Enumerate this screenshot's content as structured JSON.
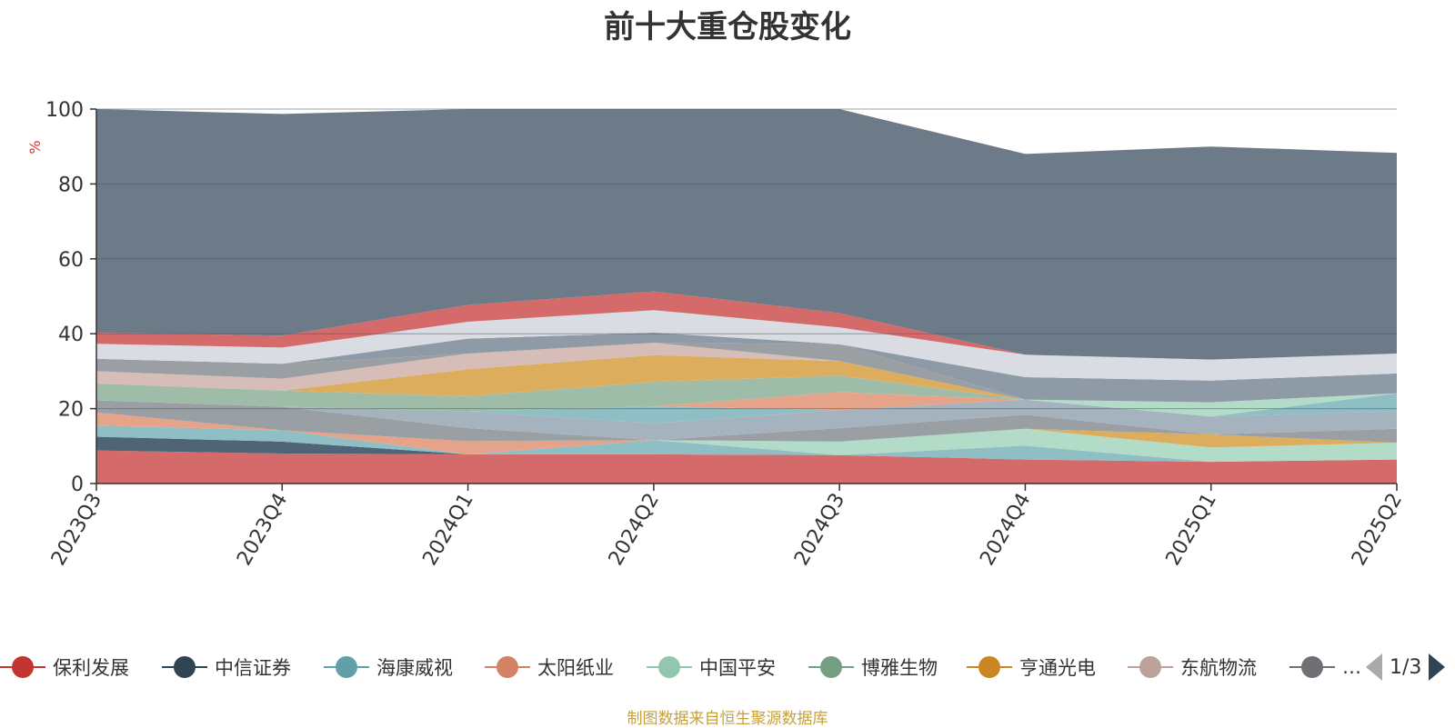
{
  "chart_data": {
    "type": "area",
    "stacked": true,
    "title": "前十大重仓股变化",
    "ylabel": "%",
    "ylim": [
      0,
      100
    ],
    "yticks": [
      0,
      20,
      40,
      60,
      80,
      100
    ],
    "grid": true,
    "categories": [
      "2023Q3",
      "2023Q4",
      "2024Q1",
      "2024Q2",
      "2024Q3",
      "2024Q4",
      "2025Q1",
      "2025Q2"
    ],
    "series": [
      {
        "name": "保利发展",
        "color": "#d46a6a",
        "values": [
          8.8,
          8.0,
          7.8,
          7.8,
          7.6,
          6.4,
          5.8,
          6.4
        ]
      },
      {
        "name": "中信证券",
        "color": "#4f6577",
        "values": [
          3.7,
          3.2,
          0,
          0,
          0,
          0,
          0,
          0
        ]
      },
      {
        "name": "海康威视",
        "color": "#8fbec5",
        "values": [
          3.0,
          3.0,
          0,
          3.8,
          0,
          3.7,
          0,
          0
        ]
      },
      {
        "name": "太阳纸业",
        "color": "#e5a389",
        "values": [
          3.5,
          0,
          3.5,
          0,
          0,
          0,
          0,
          0
        ]
      },
      {
        "name": "中国平安",
        "color": "#b2dcc7",
        "values": [
          0,
          0,
          0,
          0,
          3.6,
          4.5,
          3.8,
          4.5
        ]
      },
      {
        "name": "博雅生物",
        "color": "#9fbca9",
        "values": [
          0,
          0,
          0,
          0,
          0,
          0,
          0,
          0
        ]
      },
      {
        "name": "亨通光电",
        "color": "#ddad5e",
        "values": [
          0,
          0,
          0,
          0,
          0,
          0,
          3.5,
          0
        ]
      },
      {
        "name": "东航物流",
        "color": "#d6bdb7",
        "values": [
          0,
          0,
          0,
          0,
          0,
          0,
          0,
          0
        ]
      },
      {
        "name": "…",
        "color": "#9a9fa4",
        "values": [
          3.2,
          6.3,
          3.5,
          0,
          3.6,
          3.8,
          0,
          3.7
        ]
      },
      {
        "name": "",
        "color": "#d46a6a",
        "values": [
          0,
          0,
          0,
          0,
          0,
          0,
          0,
          0
        ]
      },
      {
        "name": "",
        "color": "#a5b3be",
        "values": [
          0,
          0,
          4.5,
          4.5,
          4.8,
          4.0,
          4.8,
          4.7
        ]
      },
      {
        "name": "",
        "color": "#8fbec5",
        "values": [
          0,
          0,
          0,
          4.5,
          0,
          0,
          0,
          4.8
        ]
      },
      {
        "name": "",
        "color": "#e5a389",
        "values": [
          0,
          0,
          0,
          0,
          4.8,
          0,
          0,
          0
        ]
      },
      {
        "name": "",
        "color": "#b2dcc7",
        "values": [
          0,
          0,
          0,
          0,
          0,
          0,
          3.8,
          0
        ]
      },
      {
        "name": "",
        "color": "#9fbca9",
        "values": [
          4.5,
          4.3,
          4.0,
          6.5,
          4.4,
          0,
          0,
          0
        ]
      },
      {
        "name": "",
        "color": "#ddad5e",
        "values": [
          0,
          0,
          7.2,
          7.2,
          3.9,
          0,
          0,
          0
        ]
      },
      {
        "name": "",
        "color": "#d6bdb7",
        "values": [
          3.3,
          3.2,
          4.2,
          3.3,
          0,
          0,
          0,
          0
        ]
      },
      {
        "name": "",
        "color": "#9a9fa4",
        "values": [
          3.3,
          4.0,
          0,
          0,
          4.5,
          0,
          0,
          0
        ]
      },
      {
        "name": "",
        "color": "#8e9aa5",
        "values": [
          0,
          0,
          4.0,
          2.7,
          0,
          6.0,
          5.8,
          5.3
        ]
      },
      {
        "name": "",
        "color": "#d9dde3",
        "values": [
          4.0,
          4.3,
          4.5,
          6.0,
          4.5,
          6.0,
          5.6,
          5.3
        ]
      },
      {
        "name": "",
        "color": "#d46a6a",
        "values": [
          3.0,
          3.2,
          4.5,
          5.0,
          3.8,
          0,
          0,
          0
        ]
      },
      {
        "name": "",
        "color": "#6c7b87",
        "values": [
          59.7,
          59.2,
          52.3,
          48.7,
          54.5,
          53.6,
          56.9,
          53.6
        ]
      }
    ]
  },
  "legend": {
    "items": [
      {
        "label": "保利发展",
        "color": "#c23531"
      },
      {
        "label": "中信证券",
        "color": "#2f4554"
      },
      {
        "label": "海康威视",
        "color": "#61a0a8"
      },
      {
        "label": "太阳纸业",
        "color": "#d48265"
      },
      {
        "label": "中国平安",
        "color": "#91c7ae"
      },
      {
        "label": "博雅生物",
        "color": "#749f83"
      },
      {
        "label": "亨通光电",
        "color": "#ca8622"
      },
      {
        "label": "东航物流",
        "color": "#bda29a"
      },
      {
        "label": "…",
        "color": "#6e7074"
      }
    ],
    "page": "1/3"
  },
  "source_note": "制图数据来自恒生聚源数据库"
}
